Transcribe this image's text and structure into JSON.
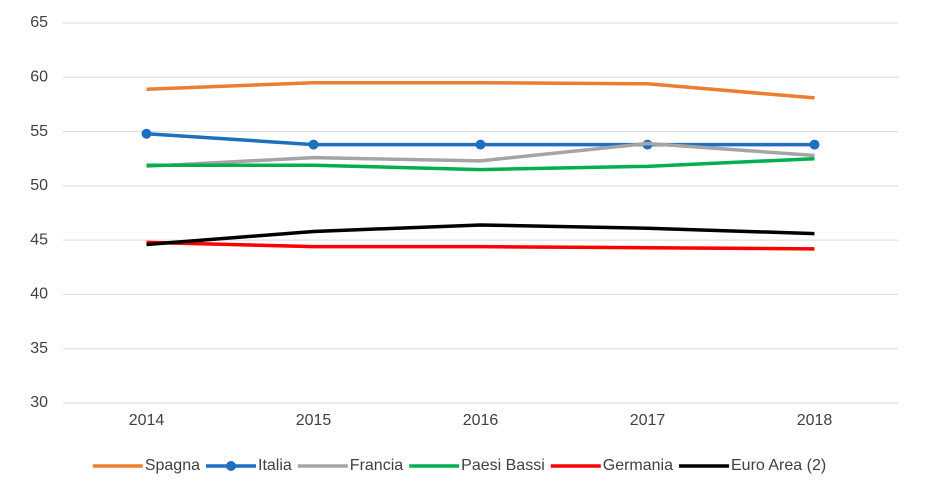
{
  "chart_data": {
    "type": "line",
    "categories": [
      "2014",
      "2015",
      "2016",
      "2017",
      "2018"
    ],
    "series": [
      {
        "name": "Spagna",
        "color": "#ed7d31",
        "values": [
          58.9,
          59.5,
          59.5,
          59.4,
          58.1
        ]
      },
      {
        "name": "Italia",
        "color": "#1f6fc0",
        "marker": true,
        "values": [
          54.8,
          53.8,
          53.8,
          53.8,
          53.8
        ]
      },
      {
        "name": "Francia",
        "color": "#a5a5a5",
        "values": [
          51.8,
          52.6,
          52.3,
          53.9,
          52.8
        ]
      },
      {
        "name": "Paesi Bassi",
        "color": "#00b050",
        "values": [
          51.9,
          51.9,
          51.5,
          51.8,
          52.5
        ]
      },
      {
        "name": "Germania",
        "color": "#ff0000",
        "values": [
          44.8,
          44.4,
          44.4,
          44.3,
          44.2
        ]
      },
      {
        "name": "Euro Area (2)",
        "color": "#000000",
        "values": [
          44.6,
          45.8,
          46.4,
          46.1,
          45.6
        ]
      }
    ],
    "ylim": [
      30,
      65
    ],
    "yticks": [
      30,
      35,
      40,
      45,
      50,
      55,
      60,
      65
    ],
    "grid": true,
    "legend": "bottom"
  }
}
